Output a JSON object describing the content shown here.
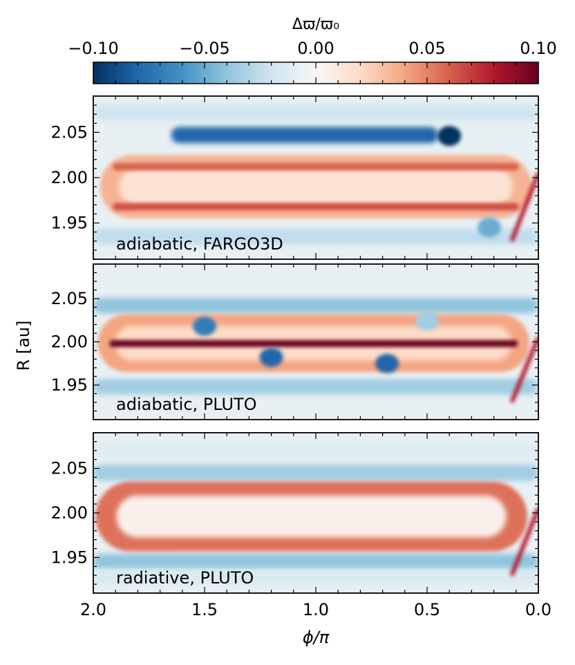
{
  "chart_data": {
    "type": "heatmap",
    "colorbar": {
      "label": "Δϖ/ϖ₀",
      "range": [
        -0.1,
        0.1
      ],
      "ticks": [
        -0.1,
        -0.05,
        0.0,
        0.05,
        0.1
      ],
      "tick_labels": [
        "−0.10",
        "−0.05",
        "0.00",
        "0.05",
        "0.10"
      ],
      "colormap": "RdBu_r",
      "stops": [
        "#053061",
        "#2166ac",
        "#4393c3",
        "#92c5de",
        "#d1e5f0",
        "#f7f7f7",
        "#fddbc7",
        "#f4a582",
        "#d6604d",
        "#b2182b",
        "#67001f"
      ]
    },
    "xlabel": "ϕ/π",
    "ylabel": "R [au]",
    "xlim": [
      2.0,
      0.0
    ],
    "ylim": [
      1.91,
      2.09
    ],
    "xticks": [
      2.0,
      1.5,
      1.0,
      0.5,
      0.0
    ],
    "xtick_labels": [
      "2.0",
      "1.5",
      "1.0",
      "0.5",
      "0.0"
    ],
    "yticks": [
      1.95,
      2.0,
      2.05
    ],
    "ytick_labels": [
      "1.95",
      "2.00",
      "2.05"
    ],
    "panels": [
      {
        "label": "adiabatic, FARGO3D",
        "ring": {
          "value": 0.035,
          "inner_value": 0.015,
          "phi_range": [
            1.97,
            0.03
          ],
          "r_range": [
            1.955,
            2.025
          ]
        },
        "bands": [
          {
            "r": 2.047,
            "value": -0.08,
            "phi_range": [
              1.65,
              0.45
            ]
          },
          {
            "r": 2.072,
            "value": -0.02,
            "phi_range": [
              2.0,
              0.0
            ]
          },
          {
            "r": 1.935,
            "value": -0.025,
            "phi_range": [
              2.0,
              0.0
            ]
          }
        ],
        "vortices": [
          {
            "phi": 0.4,
            "r": 2.046,
            "value": -0.1
          },
          {
            "phi": 0.22,
            "r": 1.945,
            "value": -0.05
          }
        ],
        "streaks": [
          {
            "r": 2.012,
            "value": 0.06
          },
          {
            "r": 1.968,
            "value": 0.065
          }
        ]
      },
      {
        "label": "adiabatic, PLUTO",
        "ring": {
          "value": 0.04,
          "inner_value": 0.02,
          "phi_range": [
            1.98,
            0.04
          ],
          "r_range": [
            1.965,
            2.032
          ]
        },
        "bands": [
          {
            "r": 2.042,
            "value": -0.04,
            "phi_range": [
              2.0,
              0.0
            ]
          },
          {
            "r": 1.948,
            "value": -0.035,
            "phi_range": [
              2.0,
              0.0
            ]
          }
        ],
        "vortices": [
          {
            "phi": 1.5,
            "r": 2.018,
            "value": -0.07
          },
          {
            "phi": 1.2,
            "r": 1.982,
            "value": -0.08
          },
          {
            "phi": 0.68,
            "r": 1.975,
            "value": -0.08
          },
          {
            "phi": 0.5,
            "r": 2.024,
            "value": -0.035
          }
        ],
        "streaks": [
          {
            "r": 1.998,
            "value": 0.1
          }
        ]
      },
      {
        "label": "radiative, PLUTO",
        "ring": {
          "value": 0.055,
          "inner_value": 0.005,
          "phi_range": [
            1.99,
            0.05
          ],
          "r_range": [
            1.957,
            2.035
          ]
        },
        "bands": [
          {
            "r": 2.045,
            "value": -0.035,
            "phi_range": [
              2.0,
              0.0
            ]
          },
          {
            "r": 1.945,
            "value": -0.04,
            "phi_range": [
              2.0,
              0.0
            ]
          },
          {
            "r": 2.07,
            "value": -0.012,
            "phi_range": [
              2.0,
              0.0
            ]
          },
          {
            "r": 1.928,
            "value": -0.015,
            "phi_range": [
              2.0,
              0.0
            ]
          }
        ],
        "vortices": [],
        "streaks": []
      }
    ]
  }
}
